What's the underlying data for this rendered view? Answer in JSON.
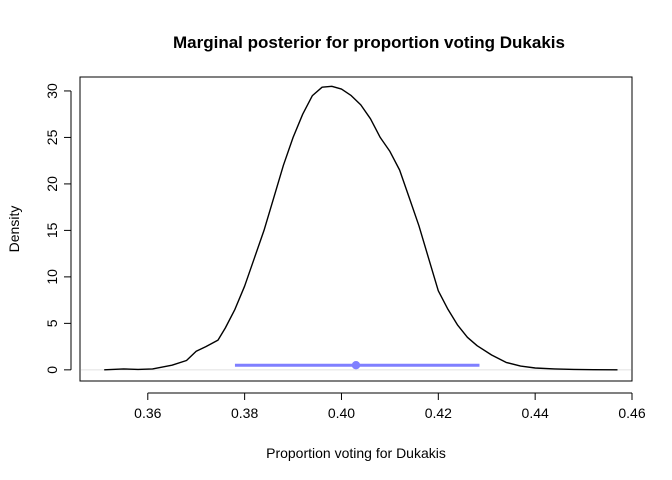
{
  "chart_data": {
    "type": "line",
    "title": "Marginal posterior for proportion voting Dukakis",
    "xlabel": "Proportion voting for Dukakis",
    "ylabel": "Density",
    "xlim": [
      0.346,
      0.46
    ],
    "ylim": [
      -1.2,
      31.5
    ],
    "xticks": [
      0.36,
      0.38,
      0.4,
      0.42,
      0.44,
      0.46
    ],
    "xtick_labels": [
      "0.36",
      "0.38",
      "0.40",
      "0.42",
      "0.44",
      "0.46"
    ],
    "yticks": [
      0,
      5,
      10,
      15,
      20,
      25,
      30
    ],
    "ytick_labels": [
      "0",
      "5",
      "10",
      "15",
      "20",
      "25",
      "30"
    ],
    "grid": false,
    "legend": "none",
    "series": [
      {
        "x": [
          0.351,
          0.355,
          0.358,
          0.361,
          0.363,
          0.365,
          0.368,
          0.37,
          0.372,
          0.3745,
          0.376,
          0.378,
          0.38,
          0.382,
          0.384,
          0.386,
          0.388,
          0.39,
          0.392,
          0.394,
          0.396,
          0.398,
          0.4,
          0.402,
          0.404,
          0.406,
          0.408,
          0.41,
          0.412,
          0.414,
          0.416,
          0.418,
          0.42,
          0.422,
          0.424,
          0.426,
          0.428,
          0.431,
          0.434,
          0.437,
          0.44,
          0.444,
          0.448,
          0.452,
          0.457
        ],
        "y": [
          0,
          0.1,
          0.05,
          0.1,
          0.3,
          0.5,
          1.0,
          2.0,
          2.5,
          3.2,
          4.5,
          6.5,
          9.0,
          12.0,
          15.0,
          18.5,
          22.0,
          25.0,
          27.5,
          29.5,
          30.4,
          30.5,
          30.2,
          29.5,
          28.5,
          27.0,
          25.0,
          23.5,
          21.5,
          18.5,
          15.5,
          12.0,
          8.5,
          6.5,
          4.8,
          3.5,
          2.6,
          1.6,
          0.8,
          0.4,
          0.2,
          0.1,
          0.05,
          0.02,
          0
        ],
        "color": "#000000"
      }
    ],
    "interval": {
      "lower": 0.378,
      "upper": 0.4285,
      "point": 0.403,
      "y": 0.5,
      "color": "#7f7fff"
    },
    "baseline": {
      "y": 0,
      "color": "#e0e0e0"
    }
  }
}
